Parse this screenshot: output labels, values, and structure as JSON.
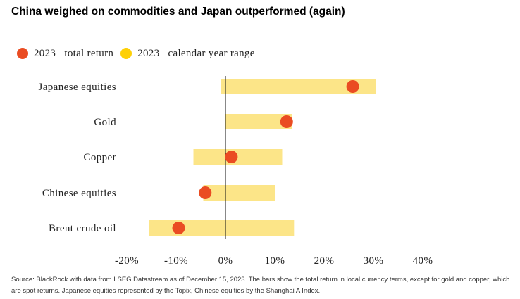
{
  "title": "China weighed on commodities and Japan outperformed (again)",
  "legend": [
    {
      "label": "2023   total return",
      "color": "#ea4c22"
    },
    {
      "label": "2023   calendar year range",
      "color": "#fed006"
    }
  ],
  "source": "Source: BlackRock with data from LSEG Datastream as of December 15, 2023. The bars show the total return in local currency terms, except for gold and copper, which are spot returns. Japanese equities represented by the Topix, Chinese equities by the Shanghai A Index.",
  "chart_data": {
    "type": "bar",
    "orientation": "horizontal",
    "title": "China weighed on commodities and Japan outperformed (again)",
    "categories": [
      "Japanese equities",
      "Gold",
      "Copper",
      "Chinese equities",
      "Brent crude oil"
    ],
    "series": [
      {
        "name": "2023 calendar year range",
        "type": "range-bar",
        "color": "#fce588",
        "ranges": [
          [
            -1,
            30.5
          ],
          [
            0,
            13.5
          ],
          [
            -6.5,
            11.5
          ],
          [
            -4.5,
            10
          ],
          [
            -15.5,
            13.9
          ]
        ]
      },
      {
        "name": "2023 total return",
        "type": "dot",
        "color": "#ea4c22",
        "values": [
          25.8,
          12.4,
          1.2,
          -4.1,
          -9.5
        ]
      }
    ],
    "xlim": [
      -20,
      40
    ],
    "xticks": [
      -20,
      -10,
      0,
      10,
      20,
      30,
      40
    ],
    "xtick_labels": [
      "-20%",
      "-10%",
      "0%",
      "10%",
      "20%",
      "30%",
      "40%"
    ],
    "grid": false,
    "zero_line": true,
    "legend_position": "top-left"
  }
}
